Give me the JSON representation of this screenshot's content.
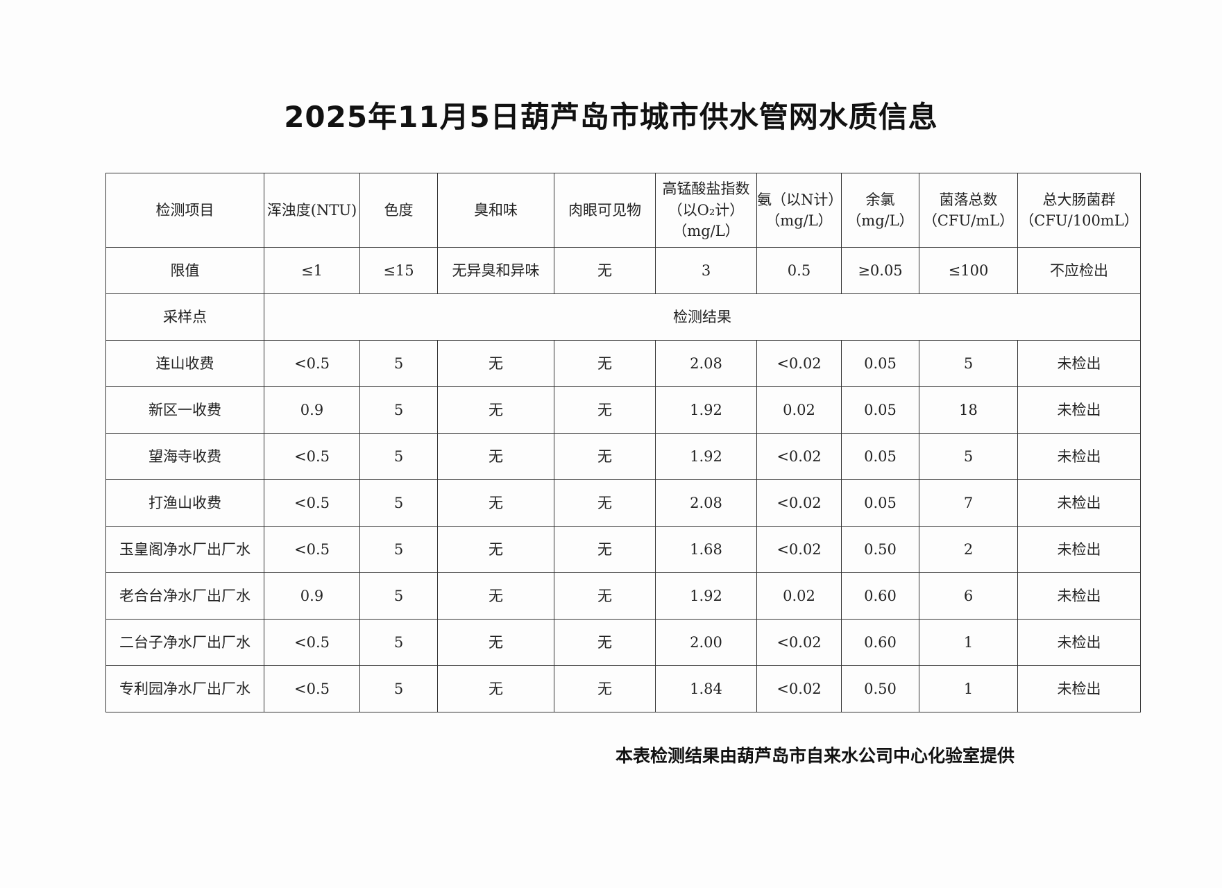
{
  "header": {
    "title": "2025年11月5日葫芦岛市城市供水管网水质信息"
  },
  "table": {
    "columns": [
      [
        "检测项目"
      ],
      [
        "浑浊度(NTU)"
      ],
      [
        "色度"
      ],
      [
        "臭和味"
      ],
      [
        "肉眼可见物"
      ],
      [
        "高锰酸盐指数",
        "（以O₂计）",
        "（mg/L）"
      ],
      [
        "氨（以N计）",
        "（mg/L）"
      ],
      [
        "余氯",
        "（mg/L）"
      ],
      [
        "菌落总数",
        "（CFU/mL）"
      ],
      [
        "总大肠菌群",
        "（CFU/100mL）"
      ]
    ],
    "limit_row": [
      "限值",
      "≤1",
      "≤15",
      "无异臭和异味",
      "无",
      "3",
      "0.5",
      "≥0.05",
      "≤100",
      "不应检出"
    ],
    "sample_row": [
      "采样点",
      "检测结果"
    ],
    "rows": [
      [
        "连山收费",
        "<0.5",
        "5",
        "无",
        "无",
        "2.08",
        "<0.02",
        "0.05",
        "5",
        "未检出"
      ],
      [
        "新区一收费",
        "0.9",
        "5",
        "无",
        "无",
        "1.92",
        "0.02",
        "0.05",
        "18",
        "未检出"
      ],
      [
        "望海寺收费",
        "<0.5",
        "5",
        "无",
        "无",
        "1.92",
        "<0.02",
        "0.05",
        "5",
        "未检出"
      ],
      [
        "打渔山收费",
        "<0.5",
        "5",
        "无",
        "无",
        "2.08",
        "<0.02",
        "0.05",
        "7",
        "未检出"
      ],
      [
        "玉皇阁净水厂出厂水",
        "<0.5",
        "5",
        "无",
        "无",
        "1.68",
        "<0.02",
        "0.50",
        "2",
        "未检出"
      ],
      [
        "老合台净水厂出厂水",
        "0.9",
        "5",
        "无",
        "无",
        "1.92",
        "0.02",
        "0.60",
        "6",
        "未检出"
      ],
      [
        "二台子净水厂出厂水",
        "<0.5",
        "5",
        "无",
        "无",
        "2.00",
        "<0.02",
        "0.60",
        "1",
        "未检出"
      ],
      [
        "专利园净水厂出厂水",
        "<0.5",
        "5",
        "无",
        "无",
        "1.84",
        "<0.02",
        "0.50",
        "1",
        "未检出"
      ]
    ]
  },
  "footer": {
    "note": "本表检测结果由葫芦岛市自来水公司中心化验室提供"
  }
}
